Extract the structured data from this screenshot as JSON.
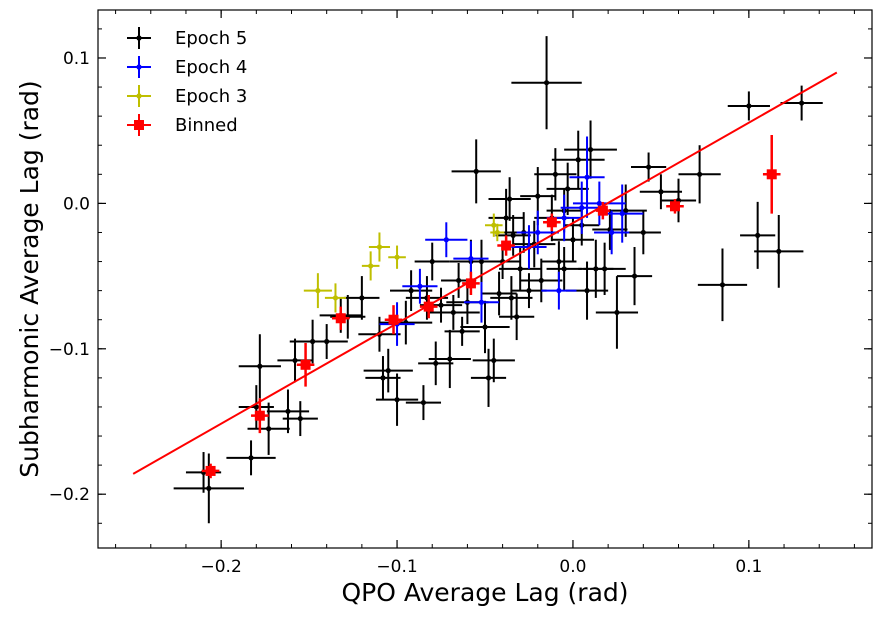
{
  "chart_data": {
    "type": "scatter",
    "xlabel": "QPO Average Lag (rad)",
    "ylabel": "Subharmonic Average Lag (rad)",
    "xlim": [
      -0.27,
      0.17
    ],
    "ylim": [
      -0.237,
      0.133
    ],
    "xticks": [
      -0.2,
      -0.1,
      0.0,
      0.1
    ],
    "xtick_labels": [
      "−0.2",
      "−0.1",
      "0.0",
      "0.1"
    ],
    "yticks": [
      -0.2,
      -0.1,
      0.0,
      0.1
    ],
    "ytick_labels": [
      "−0.2",
      "−0.1",
      "0.0",
      "0.1"
    ],
    "legend_position": "top-left",
    "grid": false,
    "colors": {
      "epoch5": "#000000",
      "epoch4": "#0000ff",
      "epoch3": "#bfbf00",
      "binned": "#ff0000",
      "fit": "#ff0000"
    },
    "fit_line": {
      "x": [
        -0.25,
        0.15
      ],
      "y": [
        -0.186,
        0.09
      ]
    },
    "series": [
      {
        "name": "Epoch 5",
        "key": "epoch5",
        "marker": "dot",
        "points": [
          [
            -0.21,
            -0.185,
            0.01,
            0.014
          ],
          [
            -0.207,
            -0.196,
            0.02,
            0.024
          ],
          [
            -0.178,
            -0.112,
            0.012,
            0.022
          ],
          [
            -0.18,
            -0.14,
            0.01,
            0.015
          ],
          [
            -0.183,
            -0.175,
            0.014,
            0.012
          ],
          [
            -0.173,
            -0.155,
            0.012,
            0.018
          ],
          [
            -0.162,
            -0.143,
            0.012,
            0.015
          ],
          [
            -0.155,
            -0.148,
            0.01,
            0.012
          ],
          [
            -0.158,
            -0.108,
            0.01,
            0.015
          ],
          [
            -0.148,
            -0.095,
            0.013,
            0.015
          ],
          [
            -0.14,
            -0.095,
            0.012,
            0.012
          ],
          [
            -0.132,
            -0.077,
            0.012,
            0.012
          ],
          [
            -0.128,
            -0.078,
            0.01,
            0.015
          ],
          [
            -0.105,
            -0.115,
            0.014,
            0.015
          ],
          [
            -0.108,
            -0.12,
            0.01,
            0.015
          ],
          [
            -0.1,
            -0.135,
            0.012,
            0.018
          ],
          [
            -0.095,
            -0.082,
            0.015,
            0.015
          ],
          [
            -0.092,
            -0.06,
            0.012,
            0.014
          ],
          [
            -0.085,
            -0.137,
            0.01,
            0.012
          ],
          [
            -0.083,
            -0.065,
            0.012,
            0.015
          ],
          [
            -0.08,
            -0.04,
            0.01,
            0.013
          ],
          [
            -0.075,
            -0.07,
            0.012,
            0.012
          ],
          [
            -0.07,
            -0.107,
            0.012,
            0.02
          ],
          [
            -0.065,
            -0.053,
            0.01,
            0.012
          ],
          [
            -0.063,
            -0.088,
            0.01,
            0.01
          ],
          [
            -0.06,
            -0.068,
            0.012,
            0.015
          ],
          [
            -0.058,
            -0.04,
            0.012,
            0.015
          ],
          [
            -0.055,
            0.022,
            0.014,
            0.022
          ],
          [
            -0.05,
            -0.085,
            0.014,
            0.018
          ],
          [
            -0.048,
            -0.12,
            0.01,
            0.02
          ],
          [
            -0.045,
            -0.108,
            0.012,
            0.015
          ],
          [
            -0.042,
            -0.062,
            0.01,
            0.015
          ],
          [
            -0.04,
            -0.04,
            0.01,
            0.012
          ],
          [
            -0.038,
            -0.01,
            0.01,
            0.02
          ],
          [
            -0.036,
            0.003,
            0.012,
            0.015
          ],
          [
            -0.034,
            -0.022,
            0.01,
            0.014
          ],
          [
            -0.032,
            -0.078,
            0.01,
            0.016
          ],
          [
            -0.03,
            -0.045,
            0.012,
            0.015
          ],
          [
            -0.028,
            -0.02,
            0.012,
            0.014
          ],
          [
            -0.025,
            -0.06,
            0.01,
            0.012
          ],
          [
            -0.022,
            -0.028,
            0.012,
            0.016
          ],
          [
            -0.02,
            0.005,
            0.01,
            0.02
          ],
          [
            -0.018,
            -0.053,
            0.012,
            0.015
          ],
          [
            -0.015,
            0.083,
            0.02,
            0.032
          ],
          [
            -0.012,
            -0.01,
            0.01,
            0.016
          ],
          [
            -0.01,
            0.02,
            0.012,
            0.018
          ],
          [
            -0.008,
            -0.04,
            0.01,
            0.014
          ],
          [
            -0.005,
            -0.005,
            0.01,
            0.015
          ],
          [
            -0.003,
            0.01,
            0.012,
            0.018
          ],
          [
            0.0,
            -0.025,
            0.012,
            0.015
          ],
          [
            0.003,
            0.03,
            0.015,
            0.02
          ],
          [
            0.005,
            -0.015,
            0.01,
            0.014
          ],
          [
            0.01,
            0.037,
            0.015,
            0.02
          ],
          [
            0.013,
            -0.045,
            0.01,
            0.02
          ],
          [
            0.018,
            -0.045,
            0.012,
            0.018
          ],
          [
            0.021,
            -0.018,
            0.01,
            0.014
          ],
          [
            0.025,
            -0.075,
            0.012,
            0.025
          ],
          [
            0.03,
            -0.005,
            0.012,
            0.018
          ],
          [
            0.035,
            -0.05,
            0.01,
            0.02
          ],
          [
            0.04,
            -0.02,
            0.01,
            0.015
          ],
          [
            0.043,
            0.025,
            0.01,
            0.01
          ],
          [
            0.05,
            0.008,
            0.012,
            0.012
          ],
          [
            0.06,
            0.002,
            0.01,
            0.015
          ],
          [
            0.072,
            0.02,
            0.012,
            0.02
          ],
          [
            0.085,
            -0.056,
            0.014,
            0.025
          ],
          [
            0.1,
            0.067,
            0.012,
            0.01
          ],
          [
            0.105,
            -0.022,
            0.01,
            0.023
          ],
          [
            0.117,
            -0.033,
            0.014,
            0.025
          ],
          [
            0.13,
            0.069,
            0.012,
            0.012
          ],
          [
            -0.005,
            -0.045,
            0.01,
            0.015
          ],
          [
            0.008,
            -0.06,
            0.012,
            0.02
          ],
          [
            -0.035,
            -0.065,
            0.012,
            0.015
          ],
          [
            -0.052,
            -0.04,
            0.012,
            0.015
          ],
          [
            -0.068,
            -0.075,
            0.015,
            0.012
          ],
          [
            -0.078,
            -0.11,
            0.01,
            0.015
          ],
          [
            -0.11,
            -0.09,
            0.012,
            0.012
          ],
          [
            -0.12,
            -0.065,
            0.01,
            0.015
          ]
        ]
      },
      {
        "name": "Epoch 4",
        "key": "epoch4",
        "marker": "dot",
        "points": [
          [
            -0.1,
            -0.083,
            0.01,
            0.015
          ],
          [
            -0.087,
            -0.057,
            0.01,
            0.012
          ],
          [
            -0.072,
            -0.025,
            0.012,
            0.012
          ],
          [
            -0.058,
            -0.038,
            0.01,
            0.012
          ],
          [
            -0.052,
            -0.068,
            0.01,
            0.014
          ],
          [
            -0.02,
            -0.02,
            0.012,
            0.015
          ],
          [
            -0.008,
            -0.06,
            0.01,
            0.013
          ],
          [
            -0.005,
            -0.01,
            0.01,
            0.016
          ],
          [
            0.005,
            -0.003,
            0.012,
            0.018
          ],
          [
            0.008,
            0.018,
            0.01,
            0.028
          ],
          [
            0.015,
            0.0,
            0.015,
            0.015
          ],
          [
            0.022,
            -0.02,
            0.01,
            0.015
          ],
          [
            0.028,
            -0.007,
            0.012,
            0.02
          ],
          [
            -0.025,
            -0.03,
            0.01,
            0.015
          ]
        ]
      },
      {
        "name": "Epoch 3",
        "key": "epoch3",
        "marker": "dot",
        "points": [
          [
            -0.145,
            -0.06,
            0.008,
            0.012
          ],
          [
            -0.135,
            -0.065,
            0.006,
            0.01
          ],
          [
            -0.115,
            -0.043,
            0.005,
            0.01
          ],
          [
            -0.11,
            -0.03,
            0.006,
            0.01
          ],
          [
            -0.1,
            -0.037,
            0.005,
            0.008
          ],
          [
            -0.045,
            -0.015,
            0.005,
            0.008
          ],
          [
            -0.043,
            -0.02,
            0.004,
            0.006
          ]
        ]
      },
      {
        "name": "Binned",
        "key": "binned",
        "marker": "square",
        "points": [
          [
            -0.206,
            -0.184,
            0.005,
            0.005
          ],
          [
            -0.178,
            -0.146,
            0.005,
            0.012
          ],
          [
            -0.152,
            -0.111,
            0.005,
            0.015
          ],
          [
            -0.132,
            -0.079,
            0.005,
            0.008
          ],
          [
            -0.102,
            -0.08,
            0.005,
            0.01
          ],
          [
            -0.082,
            -0.071,
            0.005,
            0.008
          ],
          [
            -0.058,
            -0.055,
            0.005,
            0.008
          ],
          [
            -0.038,
            -0.029,
            0.005,
            0.007
          ],
          [
            -0.012,
            -0.013,
            0.005,
            0.006
          ],
          [
            0.017,
            -0.005,
            0.004,
            0.006
          ],
          [
            0.058,
            -0.002,
            0.005,
            0.005
          ],
          [
            0.113,
            0.02,
            0.005,
            0.027
          ]
        ]
      }
    ]
  }
}
